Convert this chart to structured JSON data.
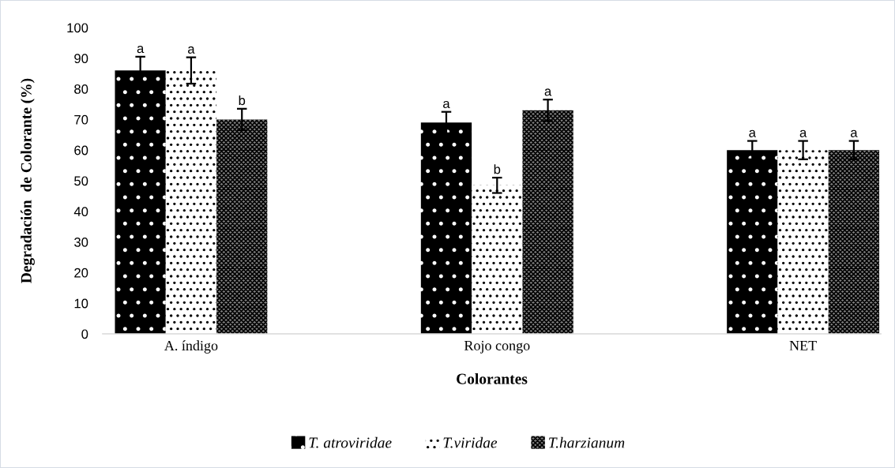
{
  "chart_data": {
    "type": "bar",
    "xlabel": "Colorantes",
    "ylabel": "Degradación  de Colorante (%)",
    "categories": [
      "A. índigo",
      "Rojo congo",
      "NET"
    ],
    "series": [
      {
        "name": "T. atroviridae",
        "color": "#000000",
        "values": [
          86,
          69,
          60
        ],
        "errors": [
          4.5,
          3.5,
          3
        ],
        "value_labels": [
          "a",
          "a",
          "a"
        ]
      },
      {
        "name": "T.viridae",
        "color": "#ffffff",
        "values": [
          86,
          48.5,
          60
        ],
        "errors": [
          4.3,
          2.5,
          3
        ],
        "value_labels": [
          "a",
          "b",
          "a"
        ]
      },
      {
        "name": "T.harzianum",
        "color": "#808080",
        "values": [
          70,
          73,
          60
        ],
        "errors": [
          3.5,
          3.5,
          3
        ],
        "value_labels": [
          "b",
          "a",
          "a"
        ]
      }
    ],
    "ylim": [
      0,
      100
    ],
    "yticks": [
      0,
      10,
      20,
      30,
      40,
      50,
      60,
      70,
      80,
      90,
      100
    ],
    "grid": false,
    "legend": "bottom"
  }
}
